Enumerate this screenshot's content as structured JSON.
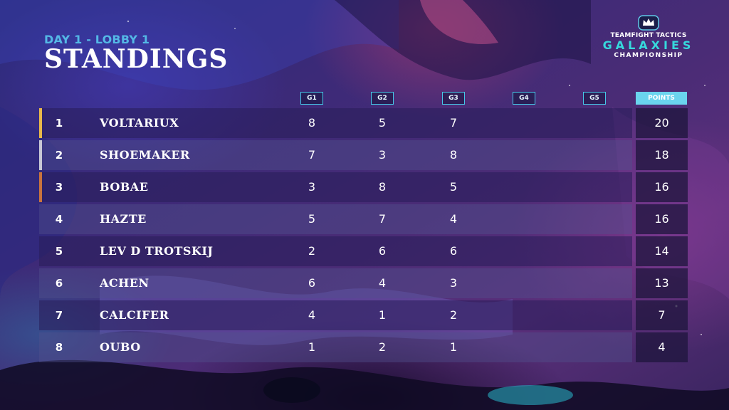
{
  "header": {
    "subtitle": "DAY 1 - LOBBY 1",
    "title": "STANDINGS"
  },
  "logo": {
    "top": "TEAMFIGHT TACTICS",
    "main": "GALAXIES",
    "bottom": "CHAMPIONSHIP"
  },
  "columns": {
    "games": [
      "G1",
      "G2",
      "G3",
      "G4",
      "G5"
    ],
    "points": "POINTS"
  },
  "colors": {
    "accent_gold": "#e9b84a",
    "accent_silver": "#c9c9d6",
    "accent_bronze": "#c9743d",
    "header_blue": "#54b8e6",
    "points_header": "#6ad4ee"
  },
  "standings": [
    {
      "rank": "1",
      "name": "VOLTARIUX",
      "scores": [
        "8",
        "5",
        "7",
        "",
        ""
      ],
      "points": "20"
    },
    {
      "rank": "2",
      "name": "SHOEMAKER",
      "scores": [
        "7",
        "3",
        "8",
        "",
        ""
      ],
      "points": "18"
    },
    {
      "rank": "3",
      "name": "BOBAE",
      "scores": [
        "3",
        "8",
        "5",
        "",
        ""
      ],
      "points": "16"
    },
    {
      "rank": "4",
      "name": "HAZTE",
      "scores": [
        "5",
        "7",
        "4",
        "",
        ""
      ],
      "points": "16"
    },
    {
      "rank": "5",
      "name": "LEV D TROTSKIJ",
      "scores": [
        "2",
        "6",
        "6",
        "",
        ""
      ],
      "points": "14"
    },
    {
      "rank": "6",
      "name": "ACHEN",
      "scores": [
        "6",
        "4",
        "3",
        "",
        ""
      ],
      "points": "13"
    },
    {
      "rank": "7",
      "name": "CALCIFER",
      "scores": [
        "4",
        "1",
        "2",
        "",
        ""
      ],
      "points": "7"
    },
    {
      "rank": "8",
      "name": "OUBO",
      "scores": [
        "1",
        "2",
        "1",
        "",
        ""
      ],
      "points": "4"
    }
  ]
}
